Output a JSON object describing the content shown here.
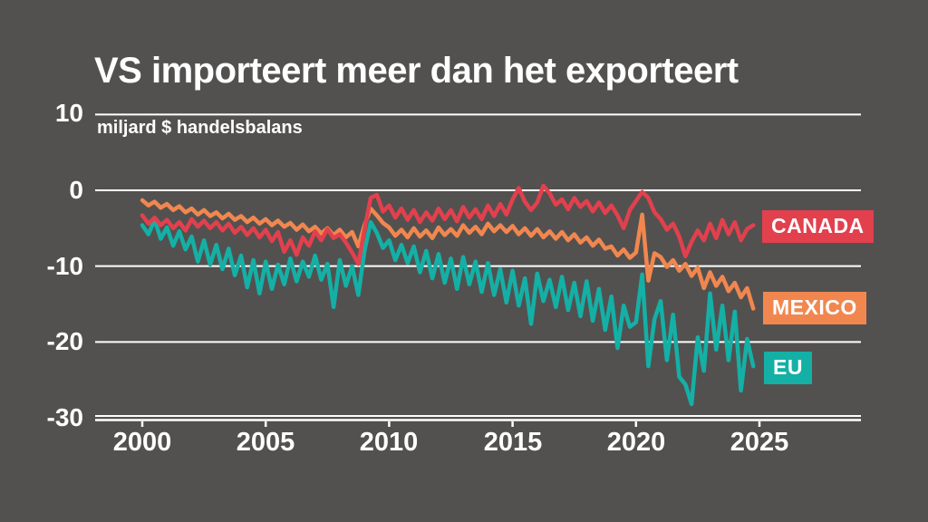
{
  "title": "VS importeert meer dan het exporteert",
  "subtitle": "miljard $ handelsbalans",
  "colors": {
    "background": "#525150",
    "grid": "#ffffff",
    "text": "#ffffff",
    "canada": "#e2404d",
    "mexico": "#f1874f",
    "eu": "#14b0a6"
  },
  "legend": {
    "canada": "CANADA",
    "mexico": "MEXICO",
    "eu": "EU"
  },
  "chart_data": {
    "type": "line",
    "title": "VS importeert meer dan het exporteert",
    "ylabel": "miljard $ handelsbalans",
    "x_start": 2000.0,
    "x_step": 0.25,
    "xlim": [
      2000,
      2025
    ],
    "ylim": [
      -30,
      10
    ],
    "grid": true,
    "legend_position": "right",
    "y_ticks": [
      10,
      0,
      -10,
      -20,
      -30
    ],
    "y_tick_labels": [
      "10",
      "0",
      "-10",
      "-20",
      "-30"
    ],
    "x_ticks": [
      2000,
      2005,
      2010,
      2015,
      2020,
      2025
    ],
    "x_tick_labels": [
      "2000",
      "2005",
      "2010",
      "2015",
      "2020",
      "2025"
    ],
    "series": [
      {
        "name": "EU",
        "color": "#14b0a6",
        "values": [
          -4.6,
          -5.8,
          -3.9,
          -6.4,
          -4.9,
          -7.3,
          -5.4,
          -7.8,
          -6.1,
          -9.4,
          -6.6,
          -9.8,
          -7.2,
          -10.4,
          -7.7,
          -11.2,
          -8.6,
          -12.8,
          -9.2,
          -13.6,
          -9.4,
          -13.0,
          -9.8,
          -12.4,
          -9.0,
          -12.0,
          -9.4,
          -11.4,
          -8.6,
          -11.8,
          -9.7,
          -15.4,
          -9.2,
          -12.6,
          -10.0,
          -13.8,
          -8.0,
          -4.2,
          -5.6,
          -7.6,
          -6.6,
          -9.2,
          -7.2,
          -9.6,
          -7.4,
          -10.8,
          -8.0,
          -11.6,
          -8.4,
          -12.2,
          -9.0,
          -13.0,
          -8.8,
          -12.4,
          -9.4,
          -13.4,
          -9.6,
          -13.8,
          -10.4,
          -14.8,
          -10.6,
          -15.2,
          -11.6,
          -17.6,
          -11.0,
          -14.6,
          -11.8,
          -15.4,
          -11.4,
          -15.8,
          -12.2,
          -16.6,
          -12.0,
          -17.2,
          -13.0,
          -18.4,
          -14.0,
          -20.8,
          -15.2,
          -18.0,
          -17.4,
          -11.1,
          -23.2,
          -17.0,
          -14.6,
          -22.4,
          -16.4,
          -24.6,
          -25.6,
          -28.2,
          -19.4,
          -23.8,
          -13.6,
          -21.0,
          -15.2,
          -22.4,
          -16.0,
          -26.4,
          -19.6,
          -23.2
        ]
      },
      {
        "name": "MEXICO",
        "color": "#f1874f",
        "values": [
          -1.3,
          -2.0,
          -1.5,
          -2.3,
          -1.8,
          -2.6,
          -2.1,
          -2.9,
          -2.4,
          -3.2,
          -2.6,
          -3.4,
          -2.9,
          -3.7,
          -3.1,
          -3.9,
          -3.4,
          -4.2,
          -3.6,
          -4.4,
          -3.8,
          -4.6,
          -4.0,
          -4.8,
          -4.3,
          -5.2,
          -4.5,
          -5.4,
          -4.8,
          -5.7,
          -5.0,
          -5.9,
          -5.2,
          -6.2,
          -5.5,
          -7.4,
          -4.6,
          -2.4,
          -3.3,
          -4.3,
          -4.9,
          -6.0,
          -5.2,
          -6.2,
          -5.0,
          -6.1,
          -5.3,
          -6.3,
          -4.9,
          -5.9,
          -5.1,
          -6.0,
          -4.6,
          -5.6,
          -4.8,
          -5.8,
          -4.4,
          -5.4,
          -4.6,
          -5.5,
          -4.7,
          -5.8,
          -5.0,
          -6.0,
          -5.1,
          -6.2,
          -5.4,
          -6.4,
          -5.5,
          -6.6,
          -5.8,
          -6.9,
          -6.2,
          -7.3,
          -6.5,
          -7.7,
          -7.4,
          -8.6,
          -7.8,
          -8.9,
          -8.2,
          -3.2,
          -11.9,
          -8.3,
          -8.8,
          -10.1,
          -9.2,
          -10.6,
          -9.7,
          -11.3,
          -10.2,
          -12.9,
          -10.8,
          -12.6,
          -11.4,
          -13.3,
          -12.2,
          -14.1,
          -12.9,
          -15.6
        ]
      },
      {
        "name": "CANADA",
        "color": "#e2404d",
        "values": [
          -3.3,
          -4.4,
          -3.6,
          -4.6,
          -3.9,
          -5.0,
          -4.2,
          -5.3,
          -3.8,
          -4.8,
          -4.0,
          -5.0,
          -4.2,
          -5.3,
          -4.4,
          -5.6,
          -4.8,
          -5.9,
          -5.0,
          -6.2,
          -5.2,
          -6.7,
          -5.5,
          -8.1,
          -6.6,
          -8.5,
          -6.2,
          -7.3,
          -5.4,
          -6.6,
          -5.1,
          -6.3,
          -5.8,
          -6.9,
          -8.2,
          -9.7,
          -5.2,
          -1.0,
          -0.6,
          -2.8,
          -2.0,
          -3.6,
          -2.4,
          -3.9,
          -2.6,
          -4.2,
          -2.9,
          -4.0,
          -2.4,
          -3.8,
          -2.6,
          -4.1,
          -2.2,
          -3.6,
          -2.5,
          -3.8,
          -2.0,
          -3.4,
          -1.8,
          -3.2,
          -1.2,
          0.3,
          -1.5,
          -2.6,
          -1.6,
          0.6,
          -0.4,
          -1.9,
          -1.2,
          -2.5,
          -1.0,
          -2.2,
          -1.4,
          -2.8,
          -1.6,
          -3.0,
          -2.0,
          -3.3,
          -5.0,
          -2.6,
          -1.4,
          -0.2,
          -1.0,
          -2.9,
          -3.8,
          -5.2,
          -4.4,
          -6.1,
          -8.7,
          -6.8,
          -5.3,
          -6.6,
          -4.4,
          -6.3,
          -3.9,
          -5.8,
          -4.2,
          -6.6,
          -5.1,
          -4.6
        ]
      }
    ]
  }
}
